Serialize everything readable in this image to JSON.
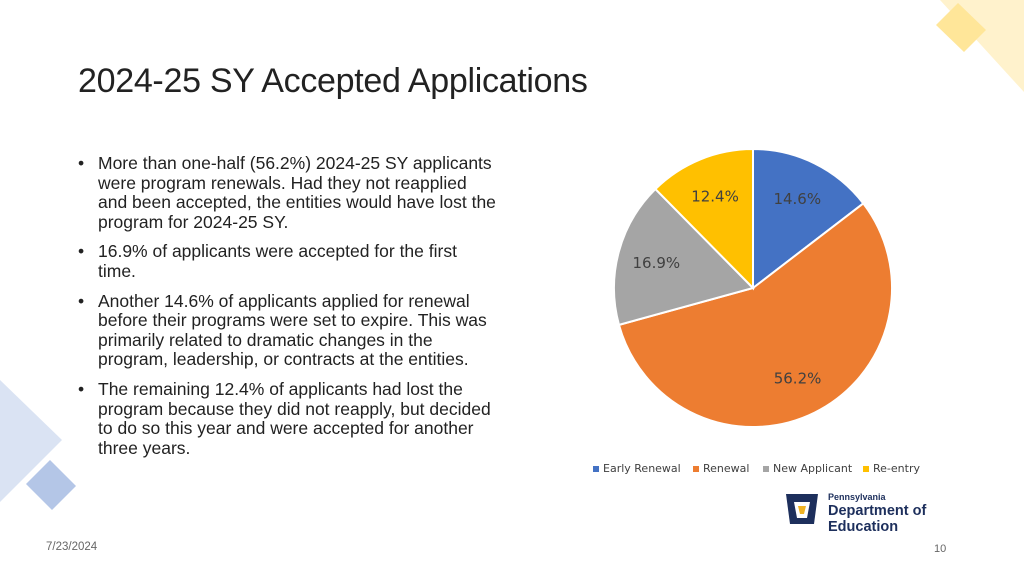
{
  "slide": {
    "title": "2024-25 SY Accepted Applications",
    "bullets": [
      "More than one-half (56.2%) 2024-25 SY applicants were program renewals. Had they not reapplied and been accepted, the entities would have lost the program for 2024-25 SY.",
      "16.9% of applicants were accepted for the first time.",
      "Another 14.6% of applicants applied for renewal before their programs were set to expire. This was primarily related to dramatic changes in the program, leadership, or contracts at the entities.",
      "The remaining 12.4% of applicants had lost the program because they did not reapply, but decided to do so this year and were accepted for another three years."
    ],
    "date": "7/23/2024",
    "page_number": "10"
  },
  "logo": {
    "line1": "Pennsylvania",
    "line2": "Department of Education"
  },
  "colors": {
    "deco_blue": "#b4c6e7",
    "deco_yellow": "#ffe699"
  },
  "chart_data": {
    "type": "pie",
    "categories": [
      "Early Renewal",
      "Renewal",
      "New Applicant",
      "Re-entry"
    ],
    "values": [
      14.6,
      56.2,
      16.9,
      12.4
    ],
    "data_labels": [
      "14.6%",
      "56.2%",
      "16.9%",
      "12.4%"
    ],
    "colors": [
      "#4472c4",
      "#ed7d31",
      "#a5a5a5",
      "#ffc000"
    ],
    "legend_position": "bottom"
  }
}
